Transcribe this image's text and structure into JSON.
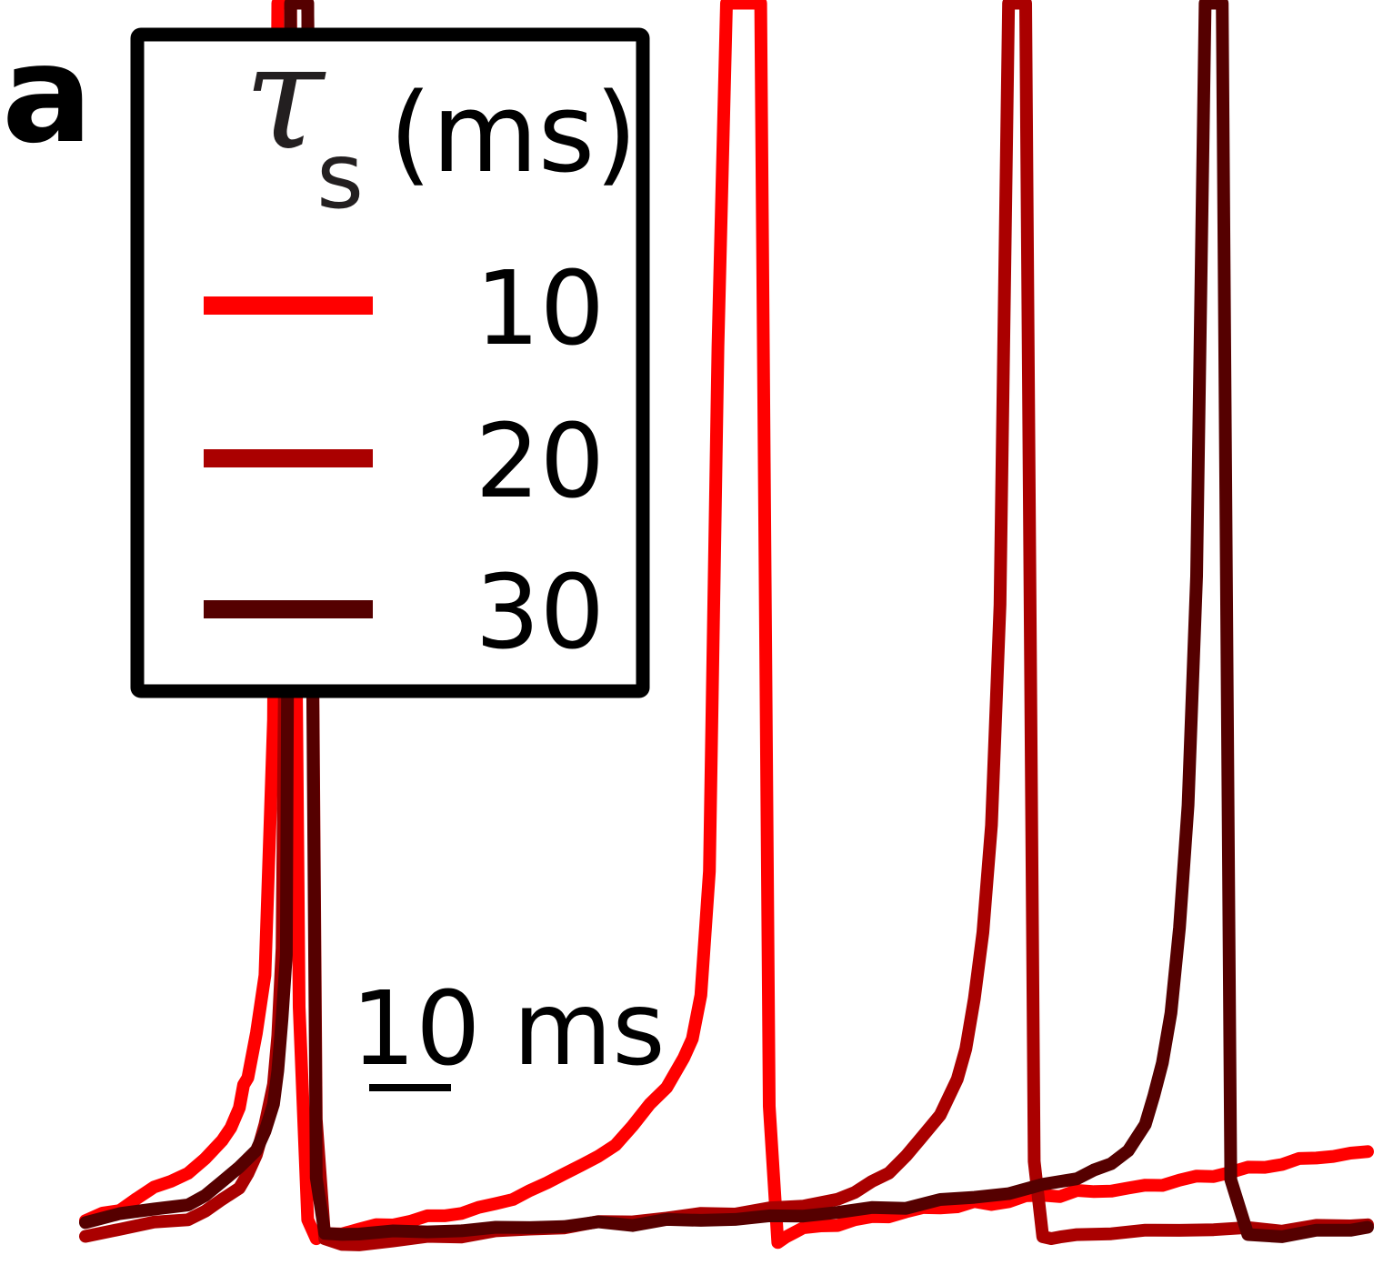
{
  "panel_label": "a",
  "chart_data": {
    "type": "line",
    "title": "",
    "xlabel": "",
    "ylabel": "",
    "grid": false,
    "legend_placement": "top-left",
    "legend": {
      "title_symbol": "τ",
      "title_subscript": "s",
      "title_unit": "(ms)"
    },
    "scale_bar": {
      "value": 10,
      "label": "10 ms"
    },
    "time_unit": "ms",
    "series": [
      {
        "name": "10",
        "color": "#ff0000",
        "spike_times_ms": [
          24,
          79
        ],
        "t": [
          0,
          2,
          4,
          6,
          8,
          10,
          12,
          14,
          16,
          17,
          18,
          18.5,
          19,
          20,
          21,
          22,
          22.5,
          23,
          24,
          25,
          26,
          27,
          28,
          30,
          32,
          34,
          36,
          38,
          40,
          42,
          44,
          46,
          48,
          50,
          52,
          54,
          56,
          58,
          60,
          62,
          64,
          66,
          68,
          70,
          71,
          72,
          73,
          74,
          75,
          76,
          77,
          78,
          79,
          80,
          81,
          82,
          83,
          84,
          86,
          88,
          90,
          92,
          94,
          96,
          98,
          100,
          102,
          104,
          106,
          108,
          110,
          112,
          114,
          116,
          118,
          120,
          122,
          124,
          126,
          128,
          130,
          132,
          134,
          136,
          138,
          140,
          142,
          144,
          146,
          148,
          150
        ],
        "v": [
          0.05,
          0.07,
          0.09,
          0.13,
          0.16,
          0.19,
          0.22,
          0.26,
          0.33,
          0.38,
          0.45,
          0.52,
          0.55,
          0.7,
          0.9,
          1.8,
          4.3,
          4.3,
          4.3,
          0.8,
          0.05,
          -0.02,
          0.0,
          0.01,
          0.02,
          0.03,
          0.04,
          0.05,
          0.06,
          0.07,
          0.08,
          0.09,
          0.11,
          0.13,
          0.15,
          0.18,
          0.22,
          0.24,
          0.27,
          0.32,
          0.38,
          0.45,
          0.52,
          0.62,
          0.68,
          0.83,
          1.27,
          3.1,
          4.3,
          4.3,
          4.3,
          4.3,
          4.3,
          0.45,
          -0.02,
          0.0,
          0.01,
          0.02,
          0.03,
          0.04,
          0.05,
          0.06,
          0.07,
          0.08,
          0.09,
          0.1,
          0.1,
          0.11,
          0.11,
          0.12,
          0.13,
          0.14,
          0.14,
          0.15,
          0.15,
          0.16,
          0.16,
          0.17,
          0.18,
          0.19,
          0.2,
          0.21,
          0.22,
          0.23,
          0.24,
          0.25,
          0.26,
          0.27,
          0.28,
          0.28,
          0.29
        ]
      },
      {
        "name": "20",
        "color": "#aa0000",
        "spike_times_ms": [
          25,
          110
        ],
        "t": [
          0,
          4,
          8,
          12,
          14,
          16,
          18,
          19,
          20,
          21,
          22,
          22.5,
          23,
          24,
          25,
          26,
          27,
          28,
          30,
          32,
          36,
          40,
          44,
          48,
          52,
          56,
          60,
          64,
          68,
          72,
          76,
          80,
          84,
          88,
          90,
          92,
          94,
          96,
          98,
          100,
          102,
          103,
          104,
          105,
          106,
          107,
          108,
          109,
          110,
          111,
          112,
          113,
          114,
          116,
          120,
          124,
          128,
          132,
          136,
          140,
          144,
          148,
          150
        ],
        "v": [
          0.0,
          0.02,
          0.04,
          0.06,
          0.08,
          0.12,
          0.17,
          0.22,
          0.28,
          0.38,
          0.52,
          0.7,
          1.0,
          4.3,
          4.3,
          4.3,
          0.4,
          -0.02,
          -0.03,
          -0.03,
          -0.02,
          -0.01,
          0.0,
          0.01,
          0.02,
          0.03,
          0.04,
          0.05,
          0.06,
          0.07,
          0.08,
          0.09,
          0.1,
          0.13,
          0.15,
          0.18,
          0.22,
          0.28,
          0.34,
          0.42,
          0.55,
          0.65,
          0.82,
          1.05,
          1.43,
          2.2,
          4.3,
          4.3,
          4.3,
          0.25,
          -0.01,
          -0.01,
          0.0,
          0.0,
          0.01,
          0.01,
          0.02,
          0.02,
          0.02,
          0.02,
          0.03,
          0.03,
          0.03
        ]
      },
      {
        "name": "30",
        "color": "#550000",
        "spike_times_ms": [
          26,
          131
        ],
        "t": [
          0,
          4,
          8,
          12,
          14,
          16,
          18,
          20,
          21,
          22,
          22.5,
          23,
          23.5,
          24,
          25,
          26,
          27,
          28,
          30,
          32,
          36,
          40,
          44,
          48,
          52,
          56,
          60,
          64,
          68,
          72,
          76,
          80,
          84,
          88,
          92,
          96,
          100,
          104,
          108,
          112,
          116,
          118,
          120,
          122,
          124,
          125,
          126,
          127,
          128,
          129,
          130,
          131,
          132,
          133,
          134,
          136,
          140,
          144,
          148,
          150
        ],
        "v": [
          0.05,
          0.07,
          0.09,
          0.11,
          0.14,
          0.18,
          0.24,
          0.3,
          0.36,
          0.45,
          0.58,
          0.75,
          0.98,
          4.3,
          4.3,
          4.3,
          0.2,
          0.0,
          0.0,
          0.01,
          0.01,
          0.01,
          0.02,
          0.02,
          0.03,
          0.03,
          0.04,
          0.04,
          0.05,
          0.05,
          0.06,
          0.06,
          0.07,
          0.08,
          0.09,
          0.1,
          0.12,
          0.13,
          0.15,
          0.17,
          0.2,
          0.22,
          0.25,
          0.3,
          0.38,
          0.48,
          0.6,
          0.78,
          1.08,
          1.5,
          2.3,
          4.3,
          4.3,
          4.3,
          0.2,
          0.0,
          0.0,
          0.01,
          0.02,
          0.02
        ]
      }
    ]
  }
}
